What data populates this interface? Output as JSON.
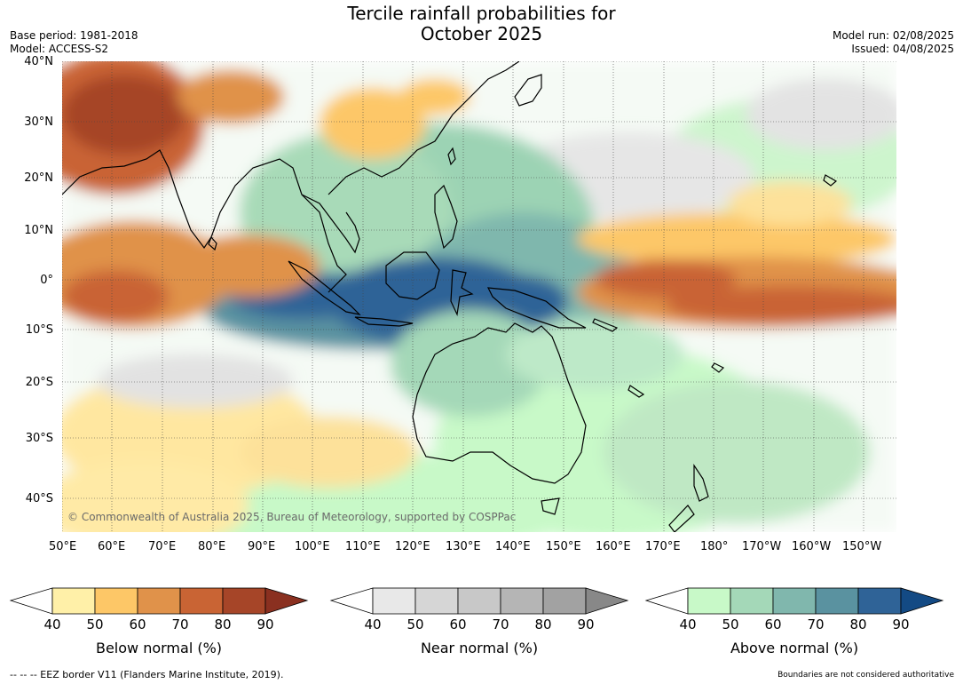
{
  "header": {
    "title_line1": "Tercile rainfall probabilities for",
    "title_line2": "October 2025",
    "base_period": "Base period: 1981-2018",
    "model": "Model: ACCESS-S2",
    "model_run": "Model run: 02/08/2025",
    "issued": "Issued: 04/08/2025"
  },
  "map": {
    "lat_labels": [
      "40°N",
      "30°N",
      "20°N",
      "10°N",
      "0°",
      "10°S",
      "20°S",
      "30°S",
      "40°S"
    ],
    "lon_labels": [
      "50°E",
      "60°E",
      "70°E",
      "80°E",
      "90°E",
      "100°E",
      "110°E",
      "120°E",
      "130°E",
      "140°E",
      "150°E",
      "160°E",
      "170°E",
      "180°",
      "170°W",
      "160°W",
      "150°W"
    ],
    "copyright": "© Commonwealth of Australia 2025, Bureau of Meteorology, supported by COSPPac"
  },
  "legends": [
    {
      "label": "Below normal (%)",
      "ticks": [
        "40",
        "50",
        "60",
        "70",
        "80",
        "90"
      ],
      "colors": [
        "#ffffff",
        "#fff0a8",
        "#fdc767",
        "#e0924a",
        "#c96434",
        "#a64528",
        "#8a3020"
      ]
    },
    {
      "label": "Near normal (%)",
      "ticks": [
        "40",
        "50",
        "60",
        "70",
        "80",
        "90"
      ],
      "colors": [
        "#ffffff",
        "#e8e8e8",
        "#d6d6d6",
        "#c8c8c8",
        "#b5b5b5",
        "#a2a2a2",
        "#888888"
      ]
    },
    {
      "label": "Above normal (%)",
      "ticks": [
        "40",
        "50",
        "60",
        "70",
        "80",
        "90"
      ],
      "colors": [
        "#ffffff",
        "#c8f9c8",
        "#a4d8b8",
        "#80b7ad",
        "#5a92a0",
        "#2f6397",
        "#134a84"
      ]
    }
  ],
  "footer": {
    "eez_note": "--  --  -- EEZ border V11 (Flanders Marine Institute, 2019).",
    "boundaries_note": "Boundaries are not considered authoritative"
  }
}
